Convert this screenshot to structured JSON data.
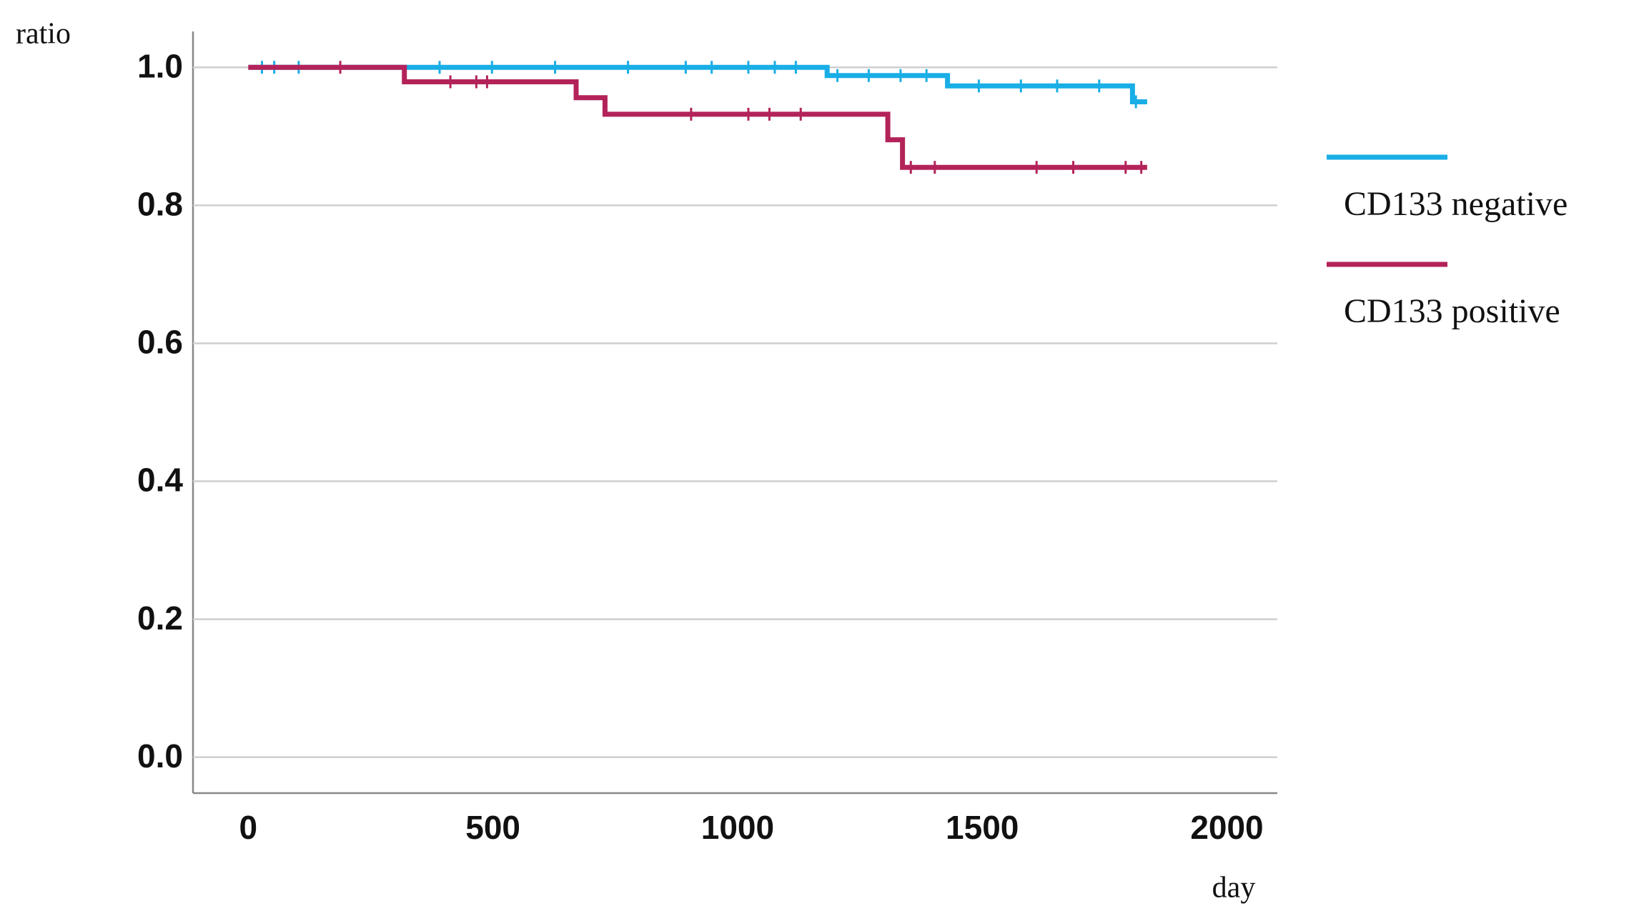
{
  "chart_data": {
    "type": "step",
    "y_label": "ratio",
    "x_label": "day",
    "xlim": [
      -113,
      2103
    ],
    "xticks": [
      0,
      500,
      1000,
      1500,
      2000
    ],
    "ylim": [
      -0.052,
      1.052
    ],
    "yticks": [
      {
        "value": 0,
        "label": "0.0"
      },
      {
        "value": 0.2,
        "label": "0.2"
      },
      {
        "value": 0.4,
        "label": "0.4"
      },
      {
        "value": 0.6,
        "label": "0.6"
      },
      {
        "value": 0.8,
        "label": "0.8"
      },
      {
        "value": 1,
        "label": "1.0"
      }
    ],
    "grid": true,
    "legend": "right",
    "series": [
      {
        "name": "CD133 negative",
        "color": "#19aee6",
        "x": [
          0,
          1183,
          1429,
          1807,
          1837
        ],
        "values": [
          1.0,
          0.988,
          0.973,
          0.95,
          0.95
        ],
        "censored": [
          28,
          53,
          103,
          391,
          498,
          627,
          776,
          894,
          947,
          1022,
          1076,
          1119,
          1204,
          1268,
          1333,
          1386,
          1493,
          1579,
          1653,
          1739,
          1814
        ]
      },
      {
        "name": "CD133 positive",
        "color": "#b3235a",
        "x": [
          0,
          319,
          670,
          729,
          1307,
          1337,
          1837
        ],
        "values": [
          1.0,
          0.979,
          0.956,
          0.932,
          0.895,
          0.855,
          0.855
        ],
        "censored": [
          188,
          413,
          466,
          488,
          905,
          1022,
          1065,
          1129,
          1354,
          1403,
          1611,
          1686,
          1793,
          1825
        ]
      }
    ]
  }
}
